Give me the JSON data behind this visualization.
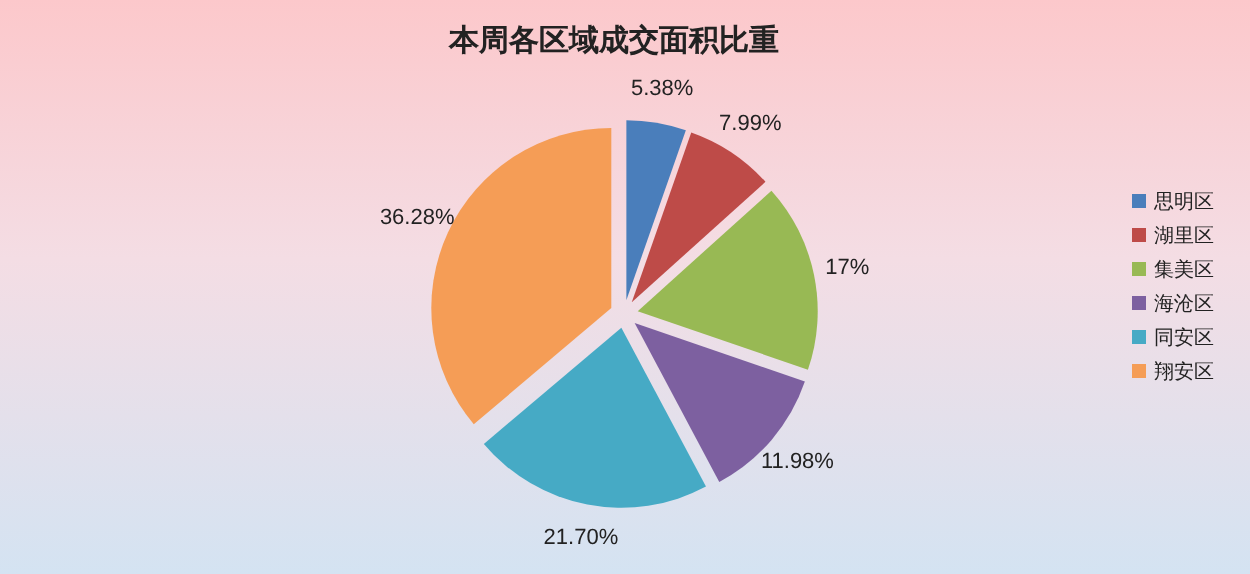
{
  "chart_data": {
    "type": "pie",
    "title": "本周各区域成交面积比重",
    "categories": [
      "思明区",
      "湖里区",
      "集美区",
      "海沧区",
      "同安区",
      "翔安区"
    ],
    "values": [
      5.38,
      7.99,
      17,
      11.98,
      21.7,
      36.28
    ],
    "colors": [
      "#4a7ebb",
      "#be4b48",
      "#98b954",
      "#7d60a0",
      "#46aac5",
      "#f59d56"
    ],
    "value_labels": [
      "5.38%",
      "7.99%",
      "17%",
      "11.98%",
      "21.70%",
      "36.28%"
    ],
    "legend": "right"
  }
}
